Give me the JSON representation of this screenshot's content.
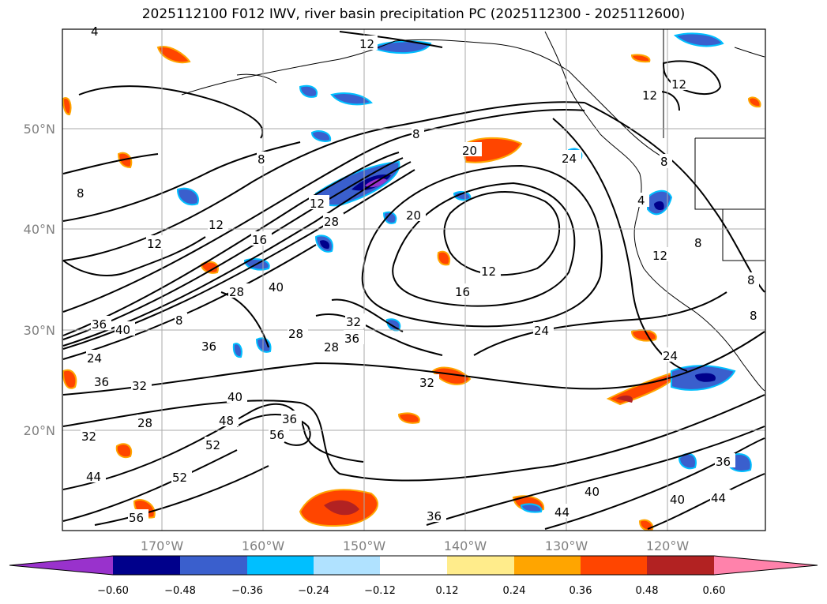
{
  "title": "2025112100 F012 IWV, river basin precipitation PC (2025112300 - 2025112600)",
  "lat_labels": [
    "50°N",
    "40°N",
    "30°N",
    "20°N"
  ],
  "lon_labels": [
    "170°W",
    "160°W",
    "150°W",
    "140°W",
    "130°W",
    "120°W"
  ],
  "colorbar": {
    "tick_labels": [
      "−0.60",
      "−0.48",
      "−0.36",
      "−0.24",
      "−0.12",
      "0.12",
      "0.24",
      "0.36",
      "0.48",
      "0.60"
    ],
    "colors": [
      "#9932CC",
      "#00008B",
      "#3A5FCD",
      "#00BFFF",
      "#B0E2FF",
      "#FFFFFF",
      "#FFEC8B",
      "#FFA500",
      "#FF4500",
      "#B22222",
      "#FF82AB"
    ]
  },
  "contour_labels": [
    "4",
    "12",
    "8",
    "8",
    "8",
    "12",
    "20",
    "24",
    "12",
    "12",
    "12",
    "28",
    "20",
    "12",
    "16",
    "40",
    "28",
    "28",
    "36",
    "40",
    "8",
    "28",
    "32",
    "36",
    "12",
    "16",
    "36",
    "24",
    "36",
    "32",
    "28",
    "36",
    "40",
    "48",
    "52",
    "56",
    "32",
    "44",
    "52",
    "56",
    "32",
    "24",
    "36",
    "40",
    "44",
    "40",
    "44",
    "36",
    "24",
    "8",
    "4",
    "8",
    "12",
    "8",
    "8"
  ]
}
